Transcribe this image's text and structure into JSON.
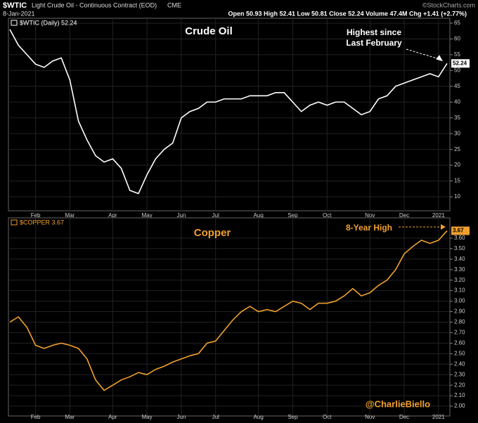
{
  "header": {
    "symbol": "$WTIC",
    "description": "Light Crude Oil - Continuous Contract (EOD)",
    "exchange": "CME",
    "date": "8-Jan-2021",
    "quote": "Open 50.93 High 52.41 Low 50.81 Close 52.24 Volume 47.4M Chg +1.41 (+2.77%)",
    "credit": "©StockCharts.com"
  },
  "chart_data": [
    {
      "type": "line",
      "title": "Crude Oil",
      "annotation": [
        "Highest since",
        "Last February"
      ],
      "categories": [
        null,
        null,
        null,
        "Feb",
        null,
        null,
        null,
        "Mar",
        null,
        null,
        null,
        null,
        "Apr",
        null,
        null,
        null,
        "May",
        null,
        null,
        null,
        "Jun",
        null,
        null,
        null,
        "Jul",
        null,
        null,
        null,
        null,
        "Aug",
        null,
        null,
        null,
        "Sep",
        null,
        null,
        null,
        "Oct",
        null,
        null,
        null,
        null,
        "Nov",
        null,
        null,
        null,
        "Dec",
        null,
        null,
        null,
        "2021",
        null
      ],
      "series": [
        {
          "name": "$WTIC (Daily) 52.24",
          "color": "#ffffff",
          "values": [
            63,
            58,
            55,
            52,
            51,
            53,
            54,
            47,
            34,
            28,
            23,
            21,
            22,
            19,
            12,
            11,
            17,
            22,
            25,
            27,
            35,
            37,
            38,
            40,
            40,
            41,
            41,
            41,
            42,
            42,
            42,
            43,
            43,
            40,
            37,
            39,
            40,
            39,
            40,
            40,
            38,
            36,
            37,
            41,
            42,
            45,
            46,
            47,
            48,
            49,
            48,
            52.24
          ]
        }
      ],
      "ylim": [
        6,
        66.1
      ],
      "yticks": [
        10,
        15,
        20,
        25,
        30,
        35,
        40,
        45,
        50,
        55,
        60,
        65
      ],
      "grid": true
    },
    {
      "type": "line",
      "title": "Copper",
      "annotation": [
        "8-Year High"
      ],
      "credit": "@CharlieBiello",
      "categories": [
        null,
        null,
        null,
        "Feb",
        null,
        null,
        null,
        "Mar",
        null,
        null,
        null,
        null,
        "Apr",
        null,
        null,
        null,
        "May",
        null,
        null,
        null,
        "Jun",
        null,
        null,
        null,
        "Jul",
        null,
        null,
        null,
        null,
        "Aug",
        null,
        null,
        null,
        "Sep",
        null,
        null,
        null,
        "Oct",
        null,
        null,
        null,
        null,
        "Nov",
        null,
        null,
        null,
        "Dec",
        null,
        null,
        null,
        "2021",
        null
      ],
      "series": [
        {
          "name": "$COPPER 3.67",
          "color": "#f0a030",
          "values": [
            2.8,
            2.85,
            2.75,
            2.58,
            2.55,
            2.58,
            2.6,
            2.58,
            2.55,
            2.45,
            2.25,
            2.15,
            2.2,
            2.25,
            2.28,
            2.32,
            2.3,
            2.35,
            2.38,
            2.42,
            2.45,
            2.48,
            2.5,
            2.6,
            2.62,
            2.72,
            2.82,
            2.9,
            2.95,
            2.9,
            2.92,
            2.9,
            2.95,
            3.0,
            2.98,
            2.92,
            2.98,
            2.98,
            3.0,
            3.05,
            3.12,
            3.05,
            3.08,
            3.15,
            3.2,
            3.3,
            3.45,
            3.52,
            3.58,
            3.55,
            3.58,
            3.67
          ]
        }
      ],
      "ylim": [
        1.92,
        3.78
      ],
      "yticks": [
        {
          "value": 2,
          "label": "2.00"
        },
        {
          "value": 2.1,
          "label": "2.10"
        },
        {
          "value": 2.2,
          "label": "2.20"
        },
        {
          "value": 2.3,
          "label": "2.30"
        },
        {
          "value": 2.4,
          "label": "2.40"
        },
        {
          "value": 2.5,
          "label": "2.50"
        },
        {
          "value": 2.6,
          "label": "2.60"
        },
        {
          "value": 2.7,
          "label": "2.70"
        },
        {
          "value": 2.8,
          "label": "2.80"
        },
        {
          "value": 2.9,
          "label": "2.90"
        },
        {
          "value": 3,
          "label": "3.00"
        },
        {
          "value": 3.1,
          "label": "3.10"
        },
        {
          "value": 3.2,
          "label": "3.20"
        },
        {
          "value": 3.3,
          "label": "3.30"
        },
        {
          "value": 3.4,
          "label": "3.40"
        },
        {
          "value": 3.5,
          "label": "3.50"
        },
        {
          "value": 3.6,
          "label": "3.60"
        }
      ],
      "grid": true
    }
  ]
}
